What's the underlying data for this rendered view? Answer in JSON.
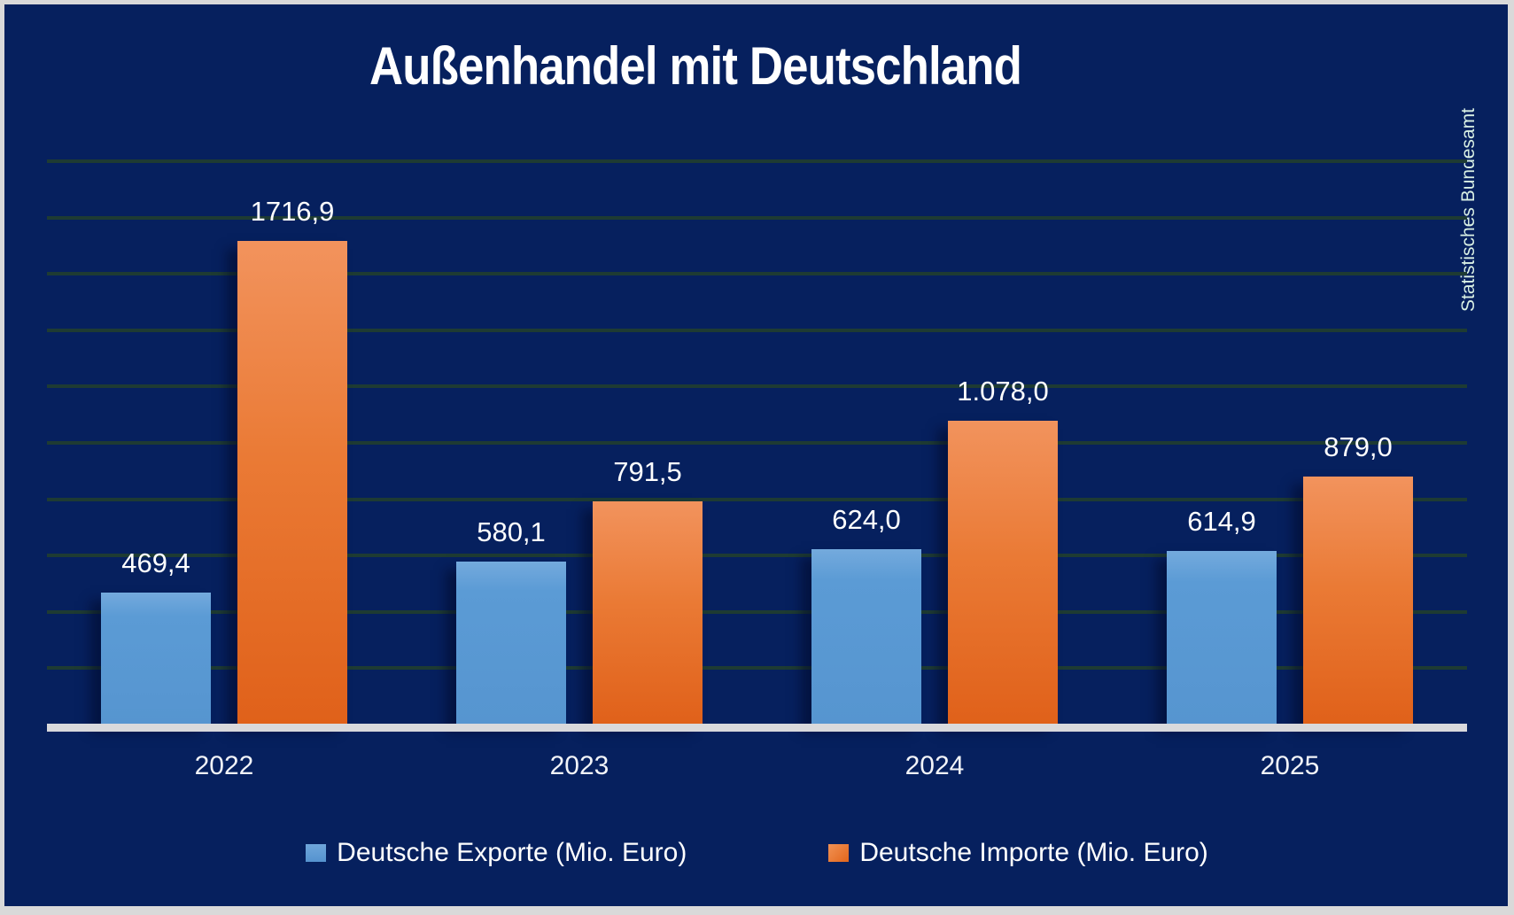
{
  "title": "Außenhandel mit Deutschland",
  "source_label": "Statistisches Bundesamt",
  "colors": {
    "background": "#06205E",
    "frame_border": "#D9D9D9",
    "gridline": "#1E3B33",
    "axis_line": "#D9D9DC",
    "export_bar": "#5B9BD5",
    "import_bar": "#ED7D31",
    "title_text": "#FFFFFF",
    "value_label_text": "#FFFFFF",
    "source_text": "#D9F0E4"
  },
  "chart_data": {
    "type": "bar",
    "title": "Außenhandel mit Deutschland",
    "xlabel": "",
    "ylabel": "",
    "categories": [
      "2022",
      "2023",
      "2024",
      "2025"
    ],
    "series": [
      {
        "name": "Deutsche Exporte (Mio. Euro)",
        "color": "#5B9BD5",
        "values": [
          469.4,
          580.1,
          624.0,
          614.9
        ],
        "value_labels": [
          "469,4",
          "580,1",
          "624,0",
          "614,9"
        ]
      },
      {
        "name": "Deutsche Importe (Mio. Euro)",
        "color": "#ED7D31",
        "values": [
          1716.9,
          791.5,
          1078.0,
          879.0
        ],
        "value_labels": [
          "1716,9",
          "791,5",
          "1.078,0",
          "879,0"
        ]
      }
    ],
    "ylim": [
      0,
      2000
    ],
    "gridline_step": 200,
    "grid": true,
    "y_axis_ticks_visible": false,
    "legend_position": "bottom",
    "annotation_source": "Statistisches Bundesamt"
  }
}
